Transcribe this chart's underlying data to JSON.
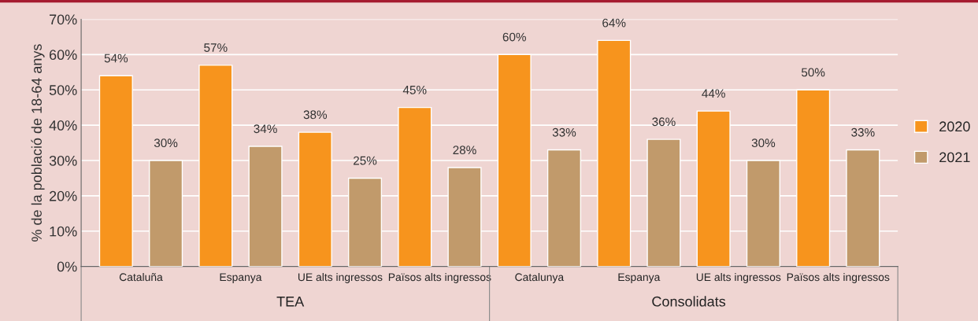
{
  "chart_data": {
    "type": "bar",
    "ylabel": "% de la població de 18-64 anys",
    "categories": [
      "Cataluña",
      "Espanya",
      "UE alts ingressos",
      "Països alts ingressos",
      "Catalunya",
      "Espanya",
      "UE alts ingressos",
      "Països alts ingressos"
    ],
    "series": [
      {
        "name": "2020",
        "color": "#f7941d",
        "values": [
          54,
          57,
          38,
          45,
          60,
          64,
          44,
          50
        ],
        "value_labels": [
          "54%",
          "57%",
          "38%",
          "45%",
          "60%",
          "64%",
          "44%",
          "50%"
        ]
      },
      {
        "name": "2021",
        "color": "#c19a6b",
        "values": [
          30,
          34,
          25,
          28,
          33,
          36,
          30,
          33
        ],
        "value_labels": [
          "30%",
          "34%",
          "25%",
          "28%",
          "33%",
          "36%",
          "30%",
          "33%"
        ]
      }
    ],
    "annotations": [
      "TEA",
      "Consolidats"
    ],
    "ylim": [
      0,
      70
    ],
    "yticks": [
      {
        "value": 0,
        "label": "0%"
      },
      {
        "value": 10,
        "label": "10%"
      },
      {
        "value": 20,
        "label": "20%"
      },
      {
        "value": 30,
        "label": "30%"
      },
      {
        "value": 40,
        "label": "40%"
      },
      {
        "value": 50,
        "label": "50%"
      },
      {
        "value": 60,
        "label": "60%"
      },
      {
        "value": 70,
        "label": "70%"
      }
    ],
    "grid": "y",
    "legend": "right"
  }
}
